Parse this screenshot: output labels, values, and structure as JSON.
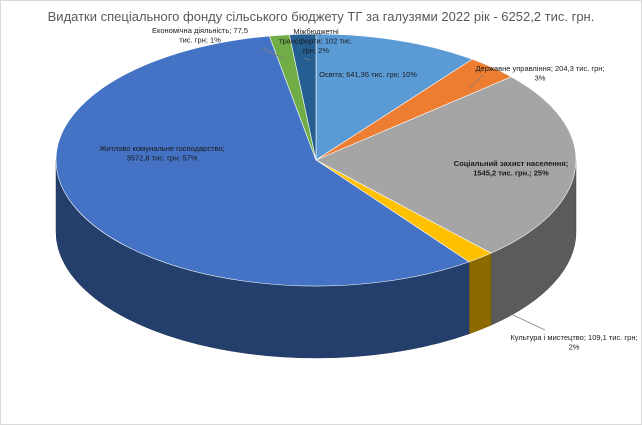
{
  "chart_data": {
    "type": "pie",
    "variant": "3d",
    "title": "Видатки спеціального фонду сільського бюджету ТГ за галузями 2022 рік - 6252,2 тис. грн.",
    "slices": [
      {
        "name": "Освіта",
        "value": 641.36,
        "percent": 10,
        "color": "#5b9bd5",
        "label_lines": [
          "Освіта; 641,36 тис. грн; 10%"
        ]
      },
      {
        "name": "Державне управління",
        "value": 204.3,
        "percent": 3,
        "color": "#ed7d31",
        "label_lines": [
          "Державне управління; 204,3 тис. грн;",
          "3%"
        ]
      },
      {
        "name": "Соціальний захист населення",
        "value": 1545.2,
        "percent": 25,
        "color": "#a5a5a5",
        "label_lines": [
          "Соціальний захист населення;",
          "1545,2 тис. грн.; 25%"
        ]
      },
      {
        "name": "Культура і мистецтво",
        "value": 109.1,
        "percent": 2,
        "color": "#ffc000",
        "label_lines": [
          "Культура і мистецтво; 109,1 тис. грн;",
          "2%"
        ]
      },
      {
        "name": "Житлово комунальне господарство",
        "value": 3572.8,
        "percent": 57,
        "color": "#4472c4",
        "label_lines": [
          "Житлово комунальне господарство;",
          "3572,8 тис. грн; 57%"
        ]
      },
      {
        "name": "Економічна діяльність",
        "value": 77.5,
        "percent": 1,
        "color": "#70ad47",
        "label_lines": [
          "Економічна діяльність; 77,5",
          "тис. грн; 1%"
        ]
      },
      {
        "name": "Міжбюджетні трансферти",
        "value": 102,
        "percent": 2,
        "color": "#255e91",
        "label_lines": [
          "Міжбюджетні",
          "трансферти; 102 тис.",
          "грн; 2%"
        ]
      }
    ]
  }
}
